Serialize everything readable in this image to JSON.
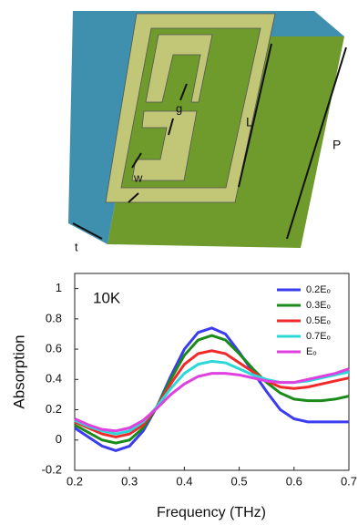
{
  "diagram": {
    "labels": [
      "g",
      "L",
      "w",
      "P",
      "t"
    ]
  },
  "chart_data": {
    "type": "line",
    "annotation": "10K",
    "x_label": "Frequency (THz)",
    "y_label": "Absorption",
    "x": [
      0.2,
      0.225,
      0.25,
      0.275,
      0.3,
      0.325,
      0.35,
      0.375,
      0.4,
      0.425,
      0.45,
      0.475,
      0.5,
      0.525,
      0.55,
      0.575,
      0.6,
      0.625,
      0.65,
      0.675,
      0.7
    ],
    "xlim": [
      0.2,
      0.7
    ],
    "xticks": [
      0.2,
      0.3,
      0.4,
      0.5,
      0.6,
      0.7
    ],
    "ylim": [
      -0.2,
      1.1
    ],
    "yticks": [
      -0.2,
      0,
      0.2,
      0.4,
      0.6,
      0.8,
      1
    ],
    "legend": "upper right",
    "series": [
      {
        "name": "0.2Eₒ",
        "color": "#3b3bf0",
        "values": [
          0.08,
          0.02,
          -0.04,
          -0.07,
          -0.04,
          0.06,
          0.22,
          0.42,
          0.6,
          0.71,
          0.74,
          0.7,
          0.58,
          0.45,
          0.32,
          0.2,
          0.14,
          0.12,
          0.12,
          0.12,
          0.12
        ]
      },
      {
        "name": "0.3Eₒ",
        "color": "#1a8a1a",
        "values": [
          0.1,
          0.05,
          0.0,
          -0.02,
          0.0,
          0.08,
          0.22,
          0.4,
          0.56,
          0.66,
          0.69,
          0.66,
          0.57,
          0.47,
          0.38,
          0.31,
          0.27,
          0.26,
          0.26,
          0.27,
          0.29
        ]
      },
      {
        "name": "0.5Eₒ",
        "color": "#f02a2a",
        "values": [
          0.12,
          0.08,
          0.04,
          0.02,
          0.04,
          0.1,
          0.22,
          0.37,
          0.5,
          0.57,
          0.59,
          0.57,
          0.51,
          0.45,
          0.39,
          0.35,
          0.34,
          0.35,
          0.37,
          0.39,
          0.41
        ]
      },
      {
        "name": "0.7Eₒ",
        "color": "#2ad8d8",
        "values": [
          0.13,
          0.09,
          0.06,
          0.04,
          0.06,
          0.12,
          0.22,
          0.34,
          0.44,
          0.5,
          0.52,
          0.51,
          0.47,
          0.43,
          0.4,
          0.38,
          0.38,
          0.39,
          0.41,
          0.43,
          0.45
        ]
      },
      {
        "name": "Eₒ",
        "color": "#e040e0",
        "values": [
          0.14,
          0.1,
          0.07,
          0.06,
          0.08,
          0.13,
          0.21,
          0.3,
          0.37,
          0.42,
          0.44,
          0.44,
          0.43,
          0.41,
          0.39,
          0.38,
          0.38,
          0.4,
          0.42,
          0.44,
          0.47
        ]
      }
    ]
  }
}
